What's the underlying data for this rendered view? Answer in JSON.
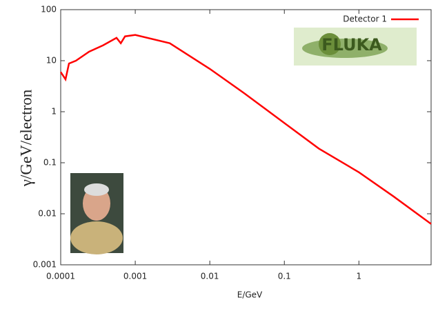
{
  "chart_data": {
    "type": "line",
    "xlabel": "E/GeV",
    "ylabel": "γ/GeV/electron",
    "x": [
      0.0001,
      0.000116,
      0.000129,
      0.00016,
      0.00024,
      0.00037,
      0.00056,
      0.00064,
      0.00073,
      0.001,
      0.0029,
      0.01,
      0.029,
      0.1,
      0.29,
      1,
      2.9,
      9.3
    ],
    "series": [
      {
        "name": "Detector 1",
        "color": "#ff0000",
        "values": [
          6.0,
          4.3,
          8.8,
          10,
          15,
          20,
          28,
          22,
          30,
          32,
          22,
          6.9,
          2.3,
          0.6,
          0.19,
          0.065,
          0.022,
          0.0063
        ]
      }
    ],
    "xlim": [
      0.0001,
      9.3
    ],
    "ylim": [
      0.001,
      100
    ],
    "xticks": [
      0.0001,
      0.001,
      0.01,
      0.1,
      1
    ],
    "yticks": [
      0.001,
      0.01,
      0.1,
      1,
      10,
      100
    ],
    "xscale": "log",
    "yscale": "log",
    "legend": "top-right",
    "annotations": [
      "FLUKA"
    ]
  }
}
